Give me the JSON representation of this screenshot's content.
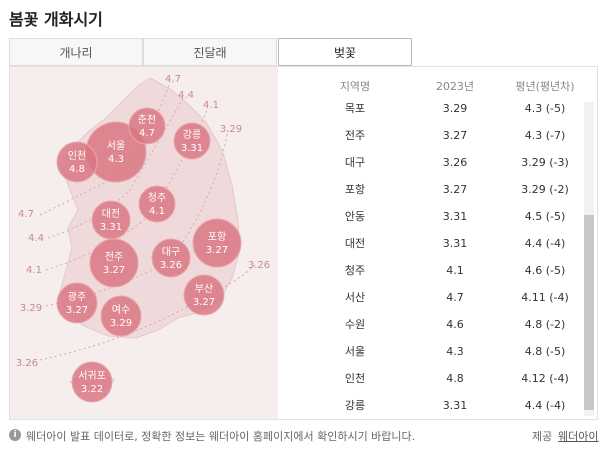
{
  "header": {
    "title": "봄꽃 개화시기"
  },
  "tabs": [
    "개나리",
    "진달래",
    "벚꽃"
  ],
  "map": {
    "bubbles": [
      {
        "name": "서울",
        "value": "4.3"
      },
      {
        "name": "인천",
        "value": "4.8"
      },
      {
        "name": "춘천",
        "value": "4.7"
      },
      {
        "name": "강릉",
        "value": "3.31"
      },
      {
        "name": "청주",
        "value": "4.1"
      },
      {
        "name": "대전",
        "value": "3.31"
      },
      {
        "name": "대구",
        "value": "3.26"
      },
      {
        "name": "포항",
        "value": "3.27"
      },
      {
        "name": "전주",
        "value": "3.27"
      },
      {
        "name": "부산",
        "value": "3.27"
      },
      {
        "name": "광주",
        "value": "3.27"
      },
      {
        "name": "여수",
        "value": "3.29"
      },
      {
        "name": "서귀포",
        "value": "3.22"
      }
    ],
    "contour_labels": [
      "4.7",
      "4.4",
      "4.1",
      "3.29",
      "4.7",
      "4.4",
      "4.1",
      "3.29",
      "3.26",
      "3.26"
    ]
  },
  "table": {
    "columns": [
      "지역명",
      "2023년",
      "평년(평년차)"
    ],
    "rows": [
      [
        "목포",
        "3.29",
        "4.3 (-5)"
      ],
      [
        "전주",
        "3.27",
        "4.3 (-7)"
      ],
      [
        "대구",
        "3.26",
        "3.29 (-3)"
      ],
      [
        "포항",
        "3.27",
        "3.29 (-2)"
      ],
      [
        "안동",
        "3.31",
        "4.5 (-5)"
      ],
      [
        "대전",
        "3.31",
        "4.4 (-4)"
      ],
      [
        "청주",
        "4.1",
        "4.6 (-5)"
      ],
      [
        "서산",
        "4.7",
        "4.11 (-4)"
      ],
      [
        "수원",
        "4.6",
        "4.8 (-2)"
      ],
      [
        "서울",
        "4.3",
        "4.8 (-5)"
      ],
      [
        "인천",
        "4.8",
        "4.12 (-4)"
      ],
      [
        "강릉",
        "3.31",
        "4.4 (-4)"
      ]
    ]
  },
  "footer": {
    "note": "웨더아이 발표 데이터로, 정확한 정보는 웨더아이 홈페이지에서 확인하시기 바랍니다.",
    "source_label": "제공",
    "source": "웨더아이"
  }
}
